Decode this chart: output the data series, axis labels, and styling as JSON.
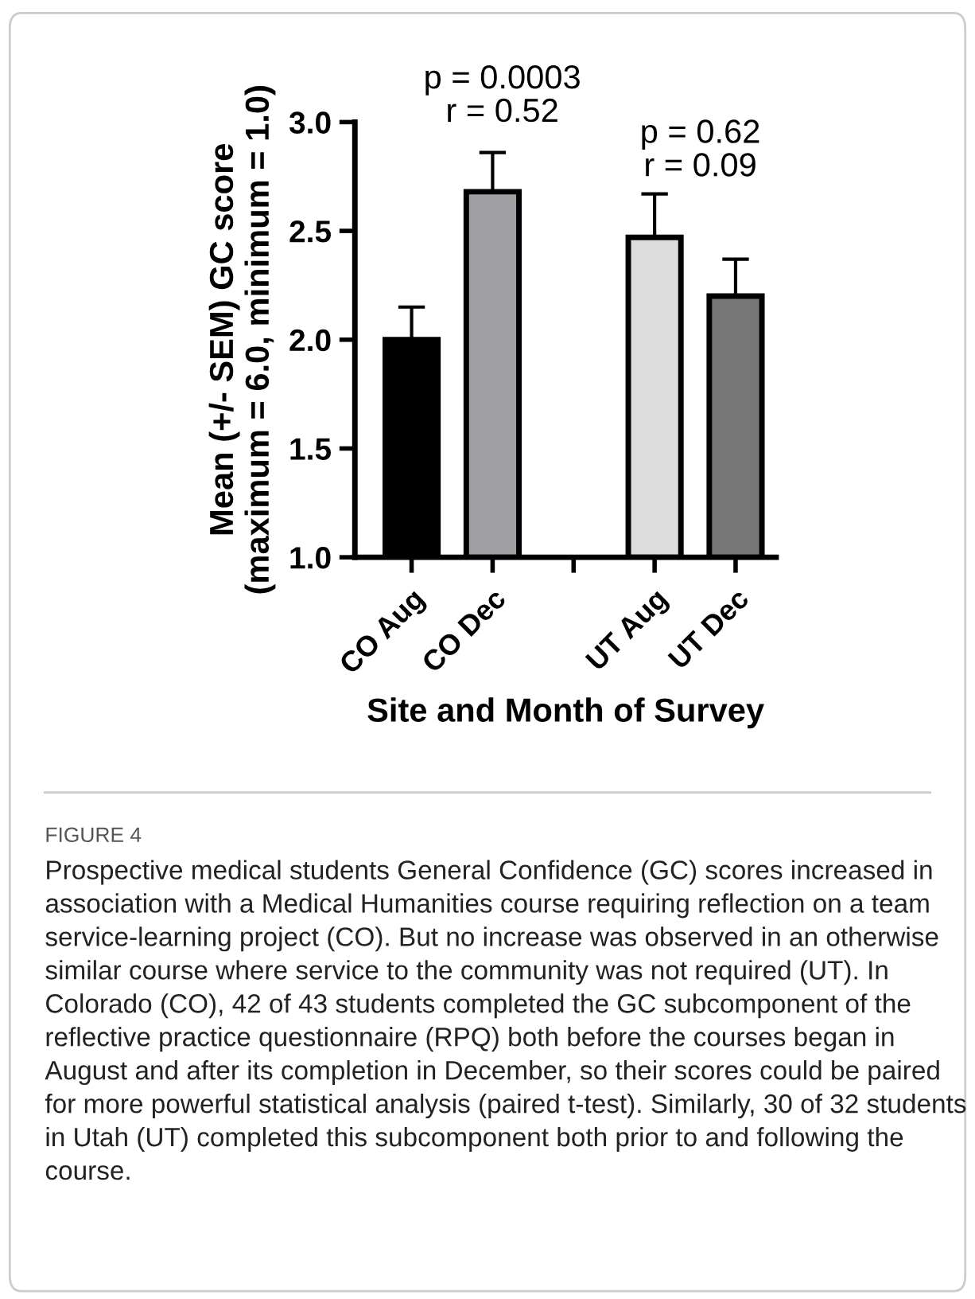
{
  "chart_data": {
    "type": "bar",
    "categories": [
      "CO Aug",
      "CO Dec",
      null,
      "UT Aug",
      "UT Dec"
    ],
    "values": [
      2.0,
      2.68,
      null,
      2.47,
      2.2
    ],
    "errors": [
      0.15,
      0.18,
      null,
      0.2,
      0.17
    ],
    "colors": [
      "#000000",
      "#a0a0a4",
      "#ffffff",
      "#dcdcdc",
      "#787878"
    ],
    "ylim": [
      1.0,
      3.0
    ],
    "yticks": [
      {
        "value": 1.0,
        "label": "1.0"
      },
      {
        "value": 1.5,
        "label": "1.5"
      },
      {
        "value": 2.0,
        "label": "2.0"
      },
      {
        "value": 2.5,
        "label": "2.5"
      },
      {
        "value": 3.0,
        "label": "3.0"
      }
    ],
    "xlabel": "Site and Month of Survey",
    "ylabel": "Mean (+/- SEM) GC score\n(maximum = 6.0, minimum = 1.0)",
    "grid": false,
    "legend": false,
    "annotations": [
      "p = 0.0003\nr = 0.52",
      "p = 0.62\nr = 0.09",
      "FIGURE 4",
      "Prospective medical students General Confidence (GC) scores increased in association with a Medical Humanities course requiring reflection on a team service-learning project (CO). But no increase was observed in an otherwise similar course where service to the community was not required (UT). In Colorado (CO), 42 of 43 students completed the GC subcomponent of the reflective practice questionnaire (RPQ) both before the courses began in August and after its completion in December, so their scores could be paired for more powerful statistical analysis (paired t-test). Similarly, 30 of 32 students in Utah (UT) completed this subcomponent both prior to and following the course."
    ]
  }
}
